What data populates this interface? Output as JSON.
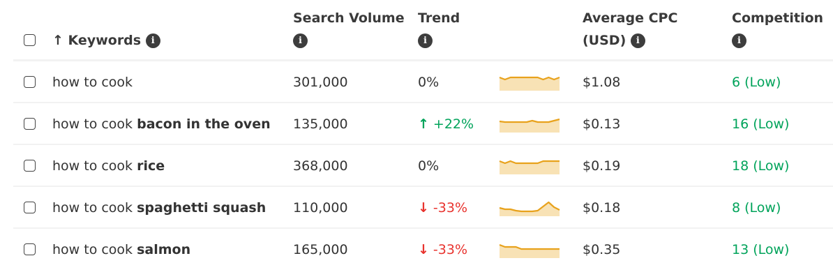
{
  "header": {
    "select_all": false,
    "sort_arrow": "↑",
    "columns": {
      "keywords": "Keywords",
      "search_volume": "Search Volume",
      "trend": "Trend",
      "cpc_line1": "Average CPC",
      "cpc_line2": "(USD)",
      "competition": "Competition"
    },
    "info_glyph": "i"
  },
  "colors": {
    "up": "#00a35a",
    "down": "#e8332e",
    "competition_low": "#00a35a",
    "sparkline_stroke": "#e8a21c",
    "sparkline_fill": "#f8e2b5"
  },
  "rows": [
    {
      "prefix": "how to cook",
      "bold": "",
      "volume": "301,000",
      "trend_dir": "neutral",
      "trend_arrow": "",
      "trend": "0%",
      "spark": [
        7,
        10,
        7,
        7,
        7,
        7,
        7,
        7,
        10,
        7,
        10,
        7
      ],
      "cpc": "$1.08",
      "competition": "6 (Low)"
    },
    {
      "prefix": "how to cook ",
      "bold": "bacon in the oven",
      "volume": "135,000",
      "trend_dir": "up",
      "trend_arrow": "↑",
      "trend": "+22%",
      "spark": [
        10,
        11,
        11,
        11,
        11,
        11,
        9,
        11,
        11,
        11,
        9,
        7
      ],
      "cpc": "$0.13",
      "competition": "16 (Low)"
    },
    {
      "prefix": "how to cook ",
      "bold": "rice",
      "volume": "368,000",
      "trend_dir": "neutral",
      "trend_arrow": "",
      "trend": "0%",
      "spark": [
        7,
        10,
        7,
        10,
        10,
        10,
        10,
        10,
        7,
        7,
        7,
        7
      ],
      "cpc": "$0.19",
      "competition": "18 (Low)"
    },
    {
      "prefix": "how to cook ",
      "bold": "spaghetti squash",
      "volume": "110,000",
      "trend_dir": "down",
      "trend_arrow": "↓",
      "trend": "-33%",
      "spark": [
        14,
        16,
        16,
        18,
        19,
        19,
        19,
        18,
        12,
        6,
        13,
        17
      ],
      "cpc": "$0.18",
      "competition": "8 (Low)"
    },
    {
      "prefix": "how to cook ",
      "bold": "salmon",
      "volume": "165,000",
      "trend_dir": "down",
      "trend_arrow": "↓",
      "trend": "-33%",
      "spark": [
        7,
        10,
        10,
        10,
        13,
        13,
        13,
        13,
        13,
        13,
        13,
        13
      ],
      "cpc": "$0.35",
      "competition": "13 (Low)"
    }
  ]
}
